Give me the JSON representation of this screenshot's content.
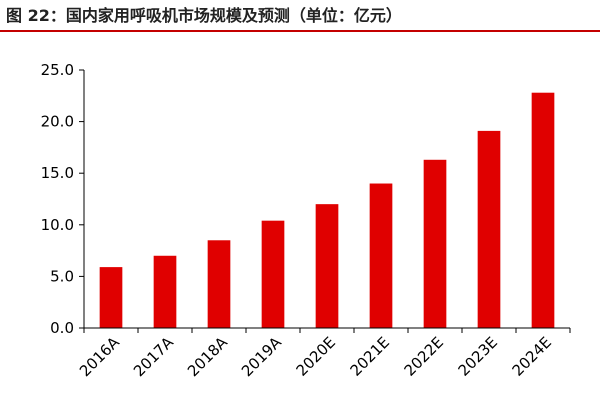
{
  "figure": {
    "title": "图 22：国内家用呼吸机市场规模及预测（单位：亿元）",
    "accent_color": "#c40000"
  },
  "chart_data": {
    "type": "bar",
    "title": "",
    "xlabel": "",
    "ylabel": "",
    "categories": [
      "2016A",
      "2017A",
      "2018A",
      "2019A",
      "2020E",
      "2021E",
      "2022E",
      "2023E",
      "2024E"
    ],
    "values": [
      5.9,
      7.0,
      8.5,
      10.4,
      12.0,
      14.0,
      16.3,
      19.1,
      22.8
    ],
    "ylim": [
      0,
      25
    ],
    "yticks": [
      0,
      5,
      10,
      15,
      20,
      25
    ],
    "ytick_labels": [
      "0.0",
      "5.0",
      "10.0",
      "15.0",
      "20.0",
      "25.0"
    ],
    "grid": false,
    "legend": "none",
    "bar_color": "#e00000"
  }
}
